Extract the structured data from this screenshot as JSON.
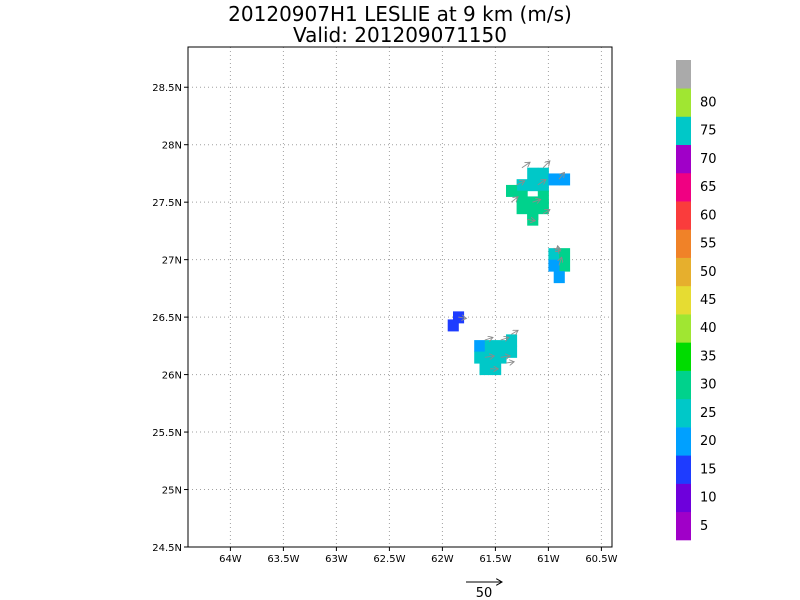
{
  "title": "20120907H1 LESLIE at 9 km (m/s)",
  "subtitle": "Valid: 201209071150",
  "chart_data": {
    "type": "heatmap",
    "xlim": [
      -64.4,
      -60.4
    ],
    "ylim": [
      24.5,
      28.85
    ],
    "x_ticks": [
      -64,
      -63.5,
      -63,
      -62.5,
      -62,
      -61.5,
      -61,
      -60.5
    ],
    "x_tick_labels": [
      "64W",
      "63.5W",
      "63W",
      "62.5W",
      "62W",
      "61.5W",
      "61W",
      "60.5W"
    ],
    "y_ticks": [
      24.5,
      25,
      25.5,
      26,
      26.5,
      27,
      27.5,
      28,
      28.5
    ],
    "y_tick_labels": [
      "24.5N",
      "25N",
      "25.5N",
      "26N",
      "26.5N",
      "27N",
      "27.5N",
      "28N",
      "28.5N"
    ],
    "grid": true,
    "colorbar": {
      "colors": [
        "#a000c8",
        "#6e00dc",
        "#1e3cff",
        "#00a0ff",
        "#00c8c8",
        "#00d28c",
        "#00dc00",
        "#a0e632",
        "#e6dc32",
        "#e6af2d",
        "#f08228",
        "#fa3c3c",
        "#f00082",
        "#a000c8",
        "#00c8c8",
        "#a0e632",
        "#aaaaaa"
      ],
      "labels": [
        "5",
        "10",
        "15",
        "20",
        "25",
        "30",
        "35",
        "40",
        "45",
        "50",
        "55",
        "60",
        "65",
        "70",
        "75",
        "80"
      ],
      "label_values": [
        5,
        10,
        15,
        20,
        25,
        30,
        35,
        40,
        45,
        50,
        55,
        60,
        65,
        70,
        75,
        80
      ]
    },
    "cells": [
      {
        "lon": -61.15,
        "lat": 27.75,
        "speed": 20
      },
      {
        "lon": -61.05,
        "lat": 27.75,
        "speed": 20
      },
      {
        "lon": -61.25,
        "lat": 27.65,
        "speed": 20
      },
      {
        "lon": -61.15,
        "lat": 27.65,
        "speed": 20
      },
      {
        "lon": -61.05,
        "lat": 27.65,
        "speed": 20
      },
      {
        "lon": -60.95,
        "lat": 27.7,
        "speed": 15
      },
      {
        "lon": -60.85,
        "lat": 27.7,
        "speed": 15
      },
      {
        "lon": -61.35,
        "lat": 27.6,
        "speed": 25
      },
      {
        "lon": -61.25,
        "lat": 27.55,
        "speed": 25
      },
      {
        "lon": -61.05,
        "lat": 27.55,
        "speed": 25
      },
      {
        "lon": -61.15,
        "lat": 27.5,
        "speed": 25
      },
      {
        "lon": -61.25,
        "lat": 27.45,
        "speed": 25
      },
      {
        "lon": -61.05,
        "lat": 27.45,
        "speed": 25
      },
      {
        "lon": -61.15,
        "lat": 27.4,
        "speed": 25
      },
      {
        "lon": -61.15,
        "lat": 27.35,
        "speed": 25
      },
      {
        "lon": -60.95,
        "lat": 27.05,
        "speed": 20
      },
      {
        "lon": -60.85,
        "lat": 27.05,
        "speed": 25
      },
      {
        "lon": -60.85,
        "lat": 26.95,
        "speed": 25
      },
      {
        "lon": -60.95,
        "lat": 26.95,
        "speed": 15
      },
      {
        "lon": -60.9,
        "lat": 26.85,
        "speed": 15
      },
      {
        "lon": -61.85,
        "lat": 26.5,
        "speed": 10
      },
      {
        "lon": -61.9,
        "lat": 26.43,
        "speed": 10
      },
      {
        "lon": -61.65,
        "lat": 26.25,
        "speed": 15
      },
      {
        "lon": -61.55,
        "lat": 26.25,
        "speed": 20
      },
      {
        "lon": -61.45,
        "lat": 26.25,
        "speed": 20
      },
      {
        "lon": -61.35,
        "lat": 26.3,
        "speed": 20
      },
      {
        "lon": -61.65,
        "lat": 26.15,
        "speed": 20
      },
      {
        "lon": -61.55,
        "lat": 26.15,
        "speed": 20
      },
      {
        "lon": -61.45,
        "lat": 26.15,
        "speed": 20
      },
      {
        "lon": -61.35,
        "lat": 26.2,
        "speed": 20
      },
      {
        "lon": -61.6,
        "lat": 26.05,
        "speed": 20
      },
      {
        "lon": -61.5,
        "lat": 26.05,
        "speed": 20
      }
    ],
    "vectors": [
      {
        "lon": -61.25,
        "lat": 27.8,
        "u": 12,
        "v": 8
      },
      {
        "lon": -61.05,
        "lat": 27.8,
        "u": 10,
        "v": 10
      },
      {
        "lon": -61.3,
        "lat": 27.65,
        "u": 12,
        "v": 6
      },
      {
        "lon": -61.1,
        "lat": 27.65,
        "u": 12,
        "v": 8
      },
      {
        "lon": -60.9,
        "lat": 27.7,
        "u": 8,
        "v": 10
      },
      {
        "lon": -61.35,
        "lat": 27.5,
        "u": 10,
        "v": 8
      },
      {
        "lon": -61.15,
        "lat": 27.5,
        "u": 12,
        "v": 4
      },
      {
        "lon": -61.05,
        "lat": 27.4,
        "u": 10,
        "v": 6
      },
      {
        "lon": -61.2,
        "lat": 27.35,
        "u": 12,
        "v": -2
      },
      {
        "lon": -60.95,
        "lat": 27.1,
        "u": 10,
        "v": -4
      },
      {
        "lon": -60.9,
        "lat": 26.95,
        "u": 4,
        "v": 12
      },
      {
        "lon": -60.9,
        "lat": 27.05,
        "u": -2,
        "v": 12
      },
      {
        "lon": -61.85,
        "lat": 26.5,
        "u": 12,
        "v": -2
      },
      {
        "lon": -61.6,
        "lat": 26.3,
        "u": 12,
        "v": 4
      },
      {
        "lon": -61.45,
        "lat": 26.3,
        "u": 12,
        "v": 4
      },
      {
        "lon": -61.35,
        "lat": 26.35,
        "u": 10,
        "v": 6
      },
      {
        "lon": -61.6,
        "lat": 26.15,
        "u": 14,
        "v": 2
      },
      {
        "lon": -61.45,
        "lat": 26.15,
        "u": 14,
        "v": 2
      },
      {
        "lon": -61.55,
        "lat": 26.05,
        "u": 12,
        "v": 0
      },
      {
        "lon": -61.4,
        "lat": 26.1,
        "u": 12,
        "v": 2
      }
    ],
    "reference_vector": {
      "label": "50",
      "speed": 50
    }
  }
}
